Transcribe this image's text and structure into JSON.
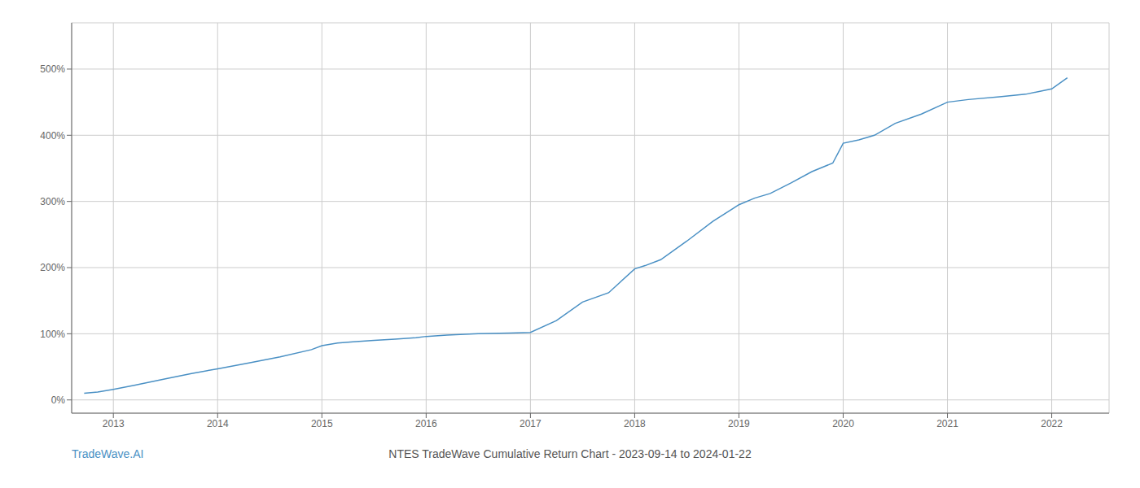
{
  "chart_data": {
    "type": "line",
    "title": "NTES TradeWave Cumulative Return Chart - 2023-09-14 to 2024-01-22",
    "annotations": [
      "TradeWave.AI"
    ],
    "color": "#4a90c4",
    "grid": true,
    "x": [
      2012.72,
      2012.85,
      2013.0,
      2013.2,
      2013.5,
      2013.75,
      2014.0,
      2014.3,
      2014.6,
      2014.9,
      2015.0,
      2015.15,
      2015.3,
      2015.5,
      2015.7,
      2015.9,
      2016.0,
      2016.2,
      2016.5,
      2016.8,
      2017.0,
      2017.25,
      2017.5,
      2017.75,
      2018.0,
      2018.1,
      2018.25,
      2018.5,
      2018.75,
      2019.0,
      2019.15,
      2019.3,
      2019.5,
      2019.7,
      2019.9,
      2020.0,
      2020.15,
      2020.3,
      2020.5,
      2020.75,
      2021.0,
      2021.2,
      2021.5,
      2021.75,
      2022.0,
      2022.15
    ],
    "values": [
      10,
      12,
      16,
      22,
      32,
      40,
      47,
      56,
      65,
      76,
      82,
      86,
      88,
      90,
      92,
      94,
      96,
      98,
      100,
      101,
      102,
      120,
      148,
      162,
      198,
      203,
      212,
      240,
      270,
      295,
      305,
      312,
      328,
      345,
      358,
      388,
      393,
      400,
      418,
      432,
      450,
      454,
      458,
      462,
      470,
      487
    ],
    "xlim": [
      2012.6,
      2022.55
    ],
    "xticks": [
      2013,
      2014,
      2015,
      2016,
      2017,
      2018,
      2019,
      2020,
      2021,
      2022
    ],
    "ylim": [
      -20,
      570
    ],
    "yticks": [
      {
        "value": 0,
        "label": "0%"
      },
      {
        "value": 100,
        "label": "100%"
      },
      {
        "value": 200,
        "label": "200%"
      },
      {
        "value": 300,
        "label": "300%"
      },
      {
        "value": 400,
        "label": "400%"
      },
      {
        "value": 500,
        "label": "500%"
      }
    ]
  }
}
